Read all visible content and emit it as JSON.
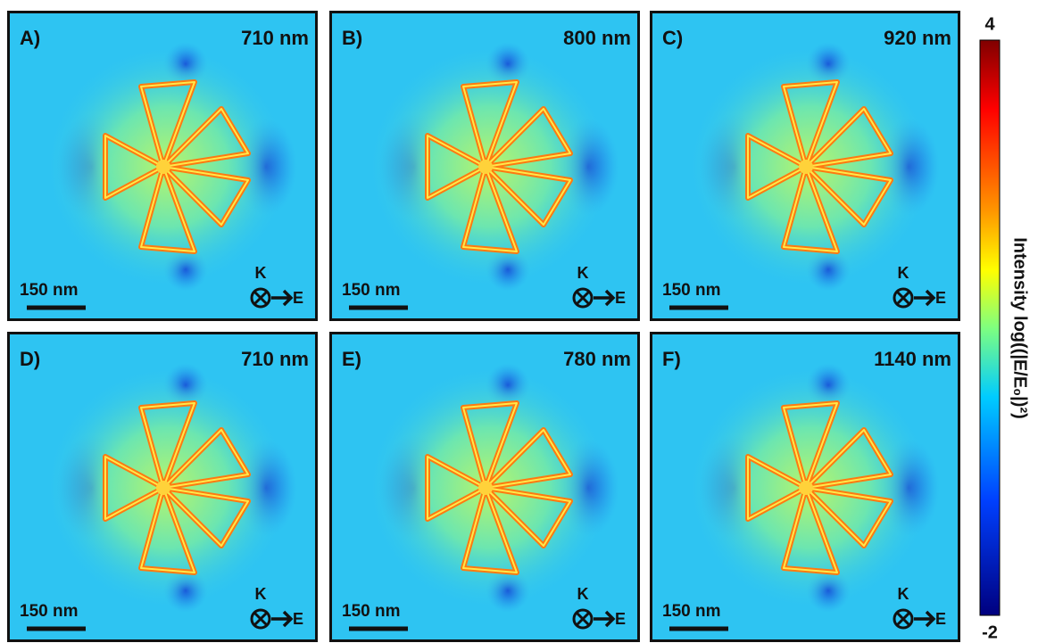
{
  "panels": [
    {
      "label": "A)",
      "wavelength": "710 nm",
      "scale_bar": "150 nm",
      "k": "K",
      "e": "E"
    },
    {
      "label": "B)",
      "wavelength": "800 nm",
      "scale_bar": "150 nm",
      "k": "K",
      "e": "E"
    },
    {
      "label": "C)",
      "wavelength": "920 nm",
      "scale_bar": "150 nm",
      "k": "K",
      "e": "E"
    },
    {
      "label": "D)",
      "wavelength": "710 nm",
      "scale_bar": "150 nm",
      "k": "K",
      "e": "E"
    },
    {
      "label": "E)",
      "wavelength": "780 nm",
      "scale_bar": "150 nm",
      "k": "K",
      "e": "E"
    },
    {
      "label": "F)",
      "wavelength": "1140 nm",
      "scale_bar": "150 nm",
      "k": "K",
      "e": "E"
    }
  ],
  "colorbar": {
    "max": 4,
    "min": -2,
    "label": "Intensity log((|E/E₀|)²)"
  }
}
